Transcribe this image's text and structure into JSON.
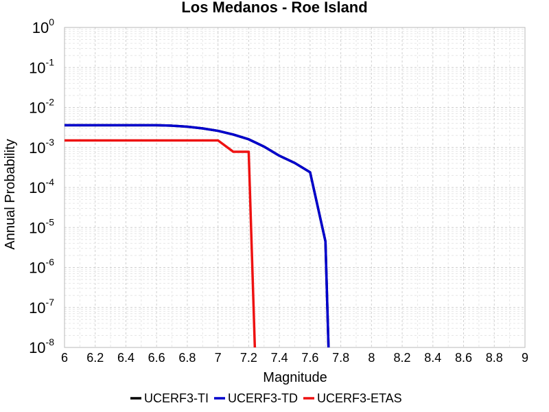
{
  "chart_data": {
    "type": "line",
    "title": "Los Medanos - Roe Island",
    "xlabel": "Magnitude",
    "ylabel": "Annual Probability",
    "xlim": [
      6,
      9
    ],
    "ylim": [
      1e-08,
      1
    ],
    "yscale": "log",
    "x_ticks": [
      "6",
      "6.2",
      "6.4",
      "6.6",
      "6.8",
      "7",
      "7.2",
      "7.4",
      "7.6",
      "7.8",
      "8",
      "8.2",
      "8.4",
      "8.6",
      "8.8",
      "9"
    ],
    "y_ticks": [
      {
        "base": "10",
        "exp": "0"
      },
      {
        "base": "10",
        "exp": "-1"
      },
      {
        "base": "10",
        "exp": "-2"
      },
      {
        "base": "10",
        "exp": "-3"
      },
      {
        "base": "10",
        "exp": "-4"
      },
      {
        "base": "10",
        "exp": "-5"
      },
      {
        "base": "10",
        "exp": "-6"
      },
      {
        "base": "10",
        "exp": "-7"
      },
      {
        "base": "10",
        "exp": "-8"
      }
    ],
    "grid": true,
    "legend_position": "bottom",
    "series": [
      {
        "name": "UCERF3-TI",
        "color": "#000000",
        "x": [
          6.0,
          6.1,
          6.2,
          6.3,
          6.4,
          6.5,
          6.6,
          6.7,
          6.8,
          6.9,
          7.0,
          7.1,
          7.2,
          7.3,
          7.4,
          7.5,
          7.6,
          7.7,
          7.72
        ],
        "y": [
          0.0036,
          0.0036,
          0.0036,
          0.0036,
          0.0036,
          0.0036,
          0.0036,
          0.0035,
          0.0033,
          0.003,
          0.0026,
          0.0021,
          0.0016,
          0.00105,
          0.00062,
          0.00041,
          0.00024,
          4.5e-06,
          1e-08
        ]
      },
      {
        "name": "UCERF3-TD",
        "color": "#0000cc",
        "x": [
          6.0,
          6.1,
          6.2,
          6.3,
          6.4,
          6.5,
          6.6,
          6.7,
          6.8,
          6.9,
          7.0,
          7.1,
          7.2,
          7.3,
          7.4,
          7.5,
          7.6,
          7.7,
          7.72
        ],
        "y": [
          0.0036,
          0.0036,
          0.0036,
          0.0036,
          0.0036,
          0.0036,
          0.0036,
          0.0035,
          0.0033,
          0.003,
          0.0026,
          0.0021,
          0.0016,
          0.00105,
          0.00062,
          0.00041,
          0.00024,
          4.5e-06,
          1e-08
        ]
      },
      {
        "name": "UCERF3-ETAS",
        "color": "#ee1111",
        "x": [
          6.0,
          6.5,
          6.9,
          7.0,
          7.1,
          7.2,
          7.24
        ],
        "y": [
          0.0015,
          0.0015,
          0.0015,
          0.0015,
          0.00078,
          0.00078,
          1e-08
        ]
      }
    ]
  }
}
